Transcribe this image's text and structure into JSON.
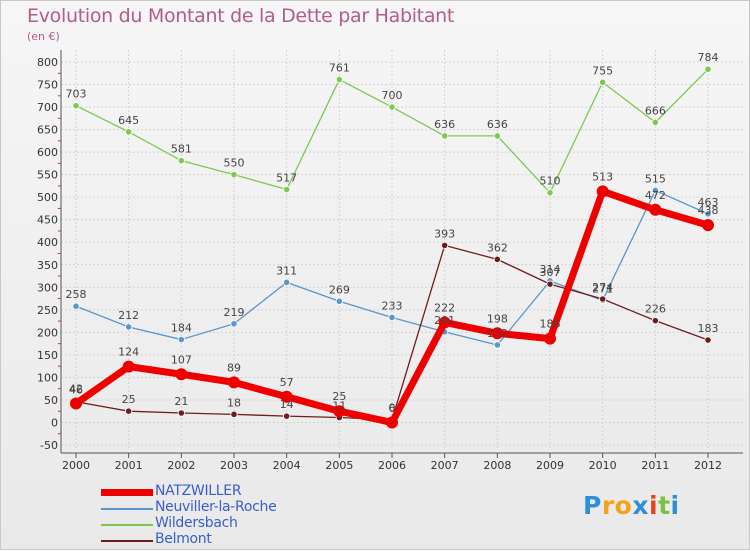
{
  "header": {
    "title": "Evolution du Montant de la Dette par Habitant",
    "unit": "(en €)"
  },
  "chart_data": {
    "type": "line",
    "x": [
      2000,
      2001,
      2002,
      2003,
      2004,
      2005,
      2006,
      2007,
      2008,
      2009,
      2010,
      2011,
      2012
    ],
    "ylim": [
      -50,
      800
    ],
    "yticks": [
      -50,
      0,
      50,
      100,
      150,
      200,
      250,
      300,
      350,
      400,
      450,
      500,
      550,
      600,
      650,
      700,
      750,
      800
    ],
    "grid": true,
    "legend_position": "bottom-left",
    "series": [
      {
        "name": "NATZWILLER",
        "color": "#ee0000",
        "values": [
          42,
          124,
          107,
          89,
          57,
          25,
          0,
          222,
          198,
          186,
          513,
          472,
          438
        ]
      },
      {
        "name": "Neuviller-la-Roche",
        "color": "#5b95c9",
        "values": [
          258,
          212,
          184,
          219,
          311,
          269,
          233,
          201,
          172,
          314,
          271,
          515,
          463
        ]
      },
      {
        "name": "Wildersbach",
        "color": "#7ec850",
        "values": [
          703,
          645,
          581,
          550,
          517,
          761,
          700,
          636,
          636,
          510,
          755,
          666,
          784
        ]
      },
      {
        "name": "Belmont",
        "color": "#6e1d1d",
        "values": [
          46,
          25,
          21,
          18,
          14,
          11,
          6,
          393,
          362,
          307,
          274,
          226,
          183
        ]
      }
    ]
  },
  "logo": {
    "letters": [
      "P",
      "r",
      "o",
      "x",
      "i",
      "t",
      "i"
    ],
    "colors": [
      "#2e8fd8",
      "#f2a21b",
      "#f2a21b",
      "#2e8fd8",
      "#e8421d",
      "#7cc242",
      "#2e8fd8"
    ]
  }
}
